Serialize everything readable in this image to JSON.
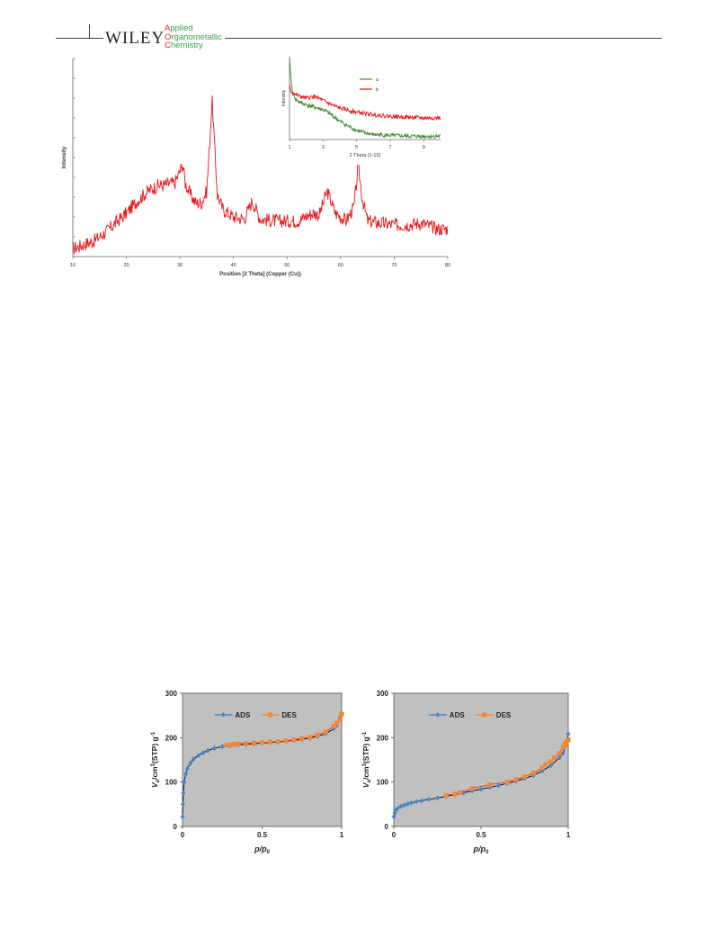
{
  "header": {
    "publisher": "WILEY",
    "journal_line1": "Applied",
    "journal_line2": "Organometallic",
    "journal_line3": "Chemistry",
    "colors": {
      "journal": "#3aa04a",
      "initials": "#d9262c"
    }
  },
  "chart_data": [
    {
      "type": "line",
      "id": "xrd-main",
      "title": "",
      "xlabel": "Position [2 Theta] (Copper (Cu))",
      "ylabel": "Intensity",
      "xlim": [
        10,
        80
      ],
      "ylim": [
        0,
        100
      ],
      "xticks": [
        10,
        20,
        30,
        40,
        50,
        60,
        70,
        80
      ],
      "grid": false,
      "series": [
        {
          "color": "#e8161b",
          "x": [
            10,
            12,
            14,
            16,
            18,
            20,
            22,
            24,
            26,
            27,
            28,
            29,
            30,
            30.5,
            31,
            32,
            33,
            34,
            35,
            35.5,
            36,
            36.5,
            37,
            38,
            40,
            42,
            43.5,
            45,
            48,
            50,
            52,
            54,
            55,
            56,
            57.5,
            59,
            61,
            62.5,
            63.3,
            64,
            65,
            67,
            70,
            72,
            75,
            78,
            80
          ],
          "y": [
            4,
            6,
            8,
            12,
            17,
            22,
            28,
            33,
            36,
            36,
            37,
            37,
            43,
            47,
            37,
            31,
            27,
            27,
            33,
            55,
            80,
            54,
            31,
            24,
            20,
            19,
            28,
            19,
            18,
            18,
            18,
            21,
            22,
            21,
            33,
            22,
            18,
            25,
            46,
            30,
            18,
            17,
            16,
            16,
            17,
            14,
            14
          ]
        }
      ]
    },
    {
      "type": "line",
      "id": "xrd-inset",
      "title": "",
      "xlabel": "2 Theta (1-10)",
      "ylabel": "Intensity",
      "xlim": [
        1,
        10
      ],
      "ylim": [
        0,
        100
      ],
      "xticks": [
        1,
        3,
        5,
        7,
        9
      ],
      "grid": false,
      "legend": "top-center",
      "series": [
        {
          "name": "a",
          "color": "#3f8f2f",
          "x": [
            1,
            1.1,
            1.2,
            1.4,
            1.6,
            2,
            2.5,
            3,
            3.5,
            4,
            4.5,
            5,
            5.5,
            6,
            7,
            8,
            9,
            10
          ],
          "y": [
            97,
            70,
            55,
            48,
            45,
            42,
            39,
            36,
            30,
            22,
            16,
            11,
            8,
            6,
            5,
            4,
            4,
            4
          ]
        },
        {
          "name": "b",
          "color": "#e8161b",
          "x": [
            1,
            1.1,
            1.3,
            1.6,
            2,
            2.5,
            3,
            3.5,
            4,
            5,
            6,
            7,
            8,
            9,
            10
          ],
          "y": [
            65,
            58,
            55,
            52,
            50,
            52,
            47,
            42,
            38,
            33,
            30,
            28,
            27,
            26,
            26
          ]
        }
      ]
    },
    {
      "type": "line",
      "id": "isotherm-left",
      "title": "",
      "xlabel": "p/p0",
      "ylabel": "Va/cm3(STP) g-1",
      "xlim": [
        0,
        1
      ],
      "ylim": [
        0,
        300
      ],
      "xticks": [
        0,
        0.5,
        1
      ],
      "yticks": [
        0,
        100,
        200,
        300
      ],
      "background": "#c0c0c0",
      "grid": false,
      "legend": "top-center",
      "series": [
        {
          "name": "ADS",
          "color": "#4a86c8",
          "line_color": "#000000",
          "marker": "diamond",
          "x": [
            0.0,
            0.002,
            0.005,
            0.01,
            0.02,
            0.03,
            0.05,
            0.07,
            0.1,
            0.13,
            0.16,
            0.2,
            0.25,
            0.3,
            0.35,
            0.4,
            0.45,
            0.5,
            0.55,
            0.6,
            0.65,
            0.7,
            0.75,
            0.8,
            0.85,
            0.9,
            0.95,
            0.97,
            0.99,
            1.0
          ],
          "y": [
            22,
            50,
            75,
            100,
            118,
            130,
            143,
            152,
            160,
            166,
            171,
            176,
            180,
            182,
            184,
            185,
            186,
            188,
            189,
            190,
            192,
            194,
            196,
            199,
            203,
            209,
            220,
            228,
            245,
            253
          ]
        },
        {
          "name": "DES",
          "color": "#f0883a",
          "line_color": "#e5322a",
          "marker": "square",
          "x": [
            1.0,
            0.99,
            0.97,
            0.95,
            0.9,
            0.85,
            0.8,
            0.75,
            0.7,
            0.65,
            0.6,
            0.55,
            0.5,
            0.45,
            0.4,
            0.35,
            0.32,
            0.3,
            0.28
          ],
          "y": [
            253,
            240,
            232,
            226,
            213,
            206,
            201,
            198,
            195,
            193,
            191,
            190,
            189,
            188,
            187,
            186,
            185,
            184,
            183
          ]
        }
      ]
    },
    {
      "type": "line",
      "id": "isotherm-right",
      "title": "",
      "xlabel": "p/p0",
      "ylabel": "Va/cm3(STP) g-1",
      "xlim": [
        0,
        1
      ],
      "ylim": [
        0,
        300
      ],
      "xticks": [
        0,
        0.5,
        1
      ],
      "yticks": [
        0,
        100,
        200,
        300
      ],
      "background": "#c0c0c0",
      "grid": false,
      "legend": "top-center",
      "series": [
        {
          "name": "ADS",
          "color": "#4a86c8",
          "line_color": "#000000",
          "marker": "diamond",
          "x": [
            0.0,
            0.005,
            0.01,
            0.02,
            0.04,
            0.06,
            0.08,
            0.1,
            0.13,
            0.16,
            0.2,
            0.25,
            0.3,
            0.35,
            0.4,
            0.45,
            0.5,
            0.55,
            0.6,
            0.65,
            0.7,
            0.75,
            0.8,
            0.85,
            0.9,
            0.95,
            0.97,
            0.99,
            1.0
          ],
          "y": [
            22,
            30,
            36,
            40,
            45,
            48,
            51,
            53,
            56,
            58,
            61,
            64,
            68,
            72,
            76,
            80,
            84,
            88,
            92,
            97,
            102,
            108,
            115,
            125,
            137,
            155,
            165,
            185,
            208
          ]
        },
        {
          "name": "DES",
          "color": "#f0883a",
          "line_color": "#e5322a",
          "marker": "square",
          "x": [
            1.0,
            0.99,
            0.98,
            0.97,
            0.95,
            0.92,
            0.9,
            0.87,
            0.85,
            0.8,
            0.75,
            0.7,
            0.65,
            0.55,
            0.45,
            0.38,
            0.35,
            0.3
          ],
          "y": [
            195,
            190,
            184,
            178,
            165,
            155,
            146,
            140,
            132,
            120,
            112,
            106,
            100,
            94,
            86,
            76,
            73,
            70
          ]
        }
      ]
    }
  ]
}
